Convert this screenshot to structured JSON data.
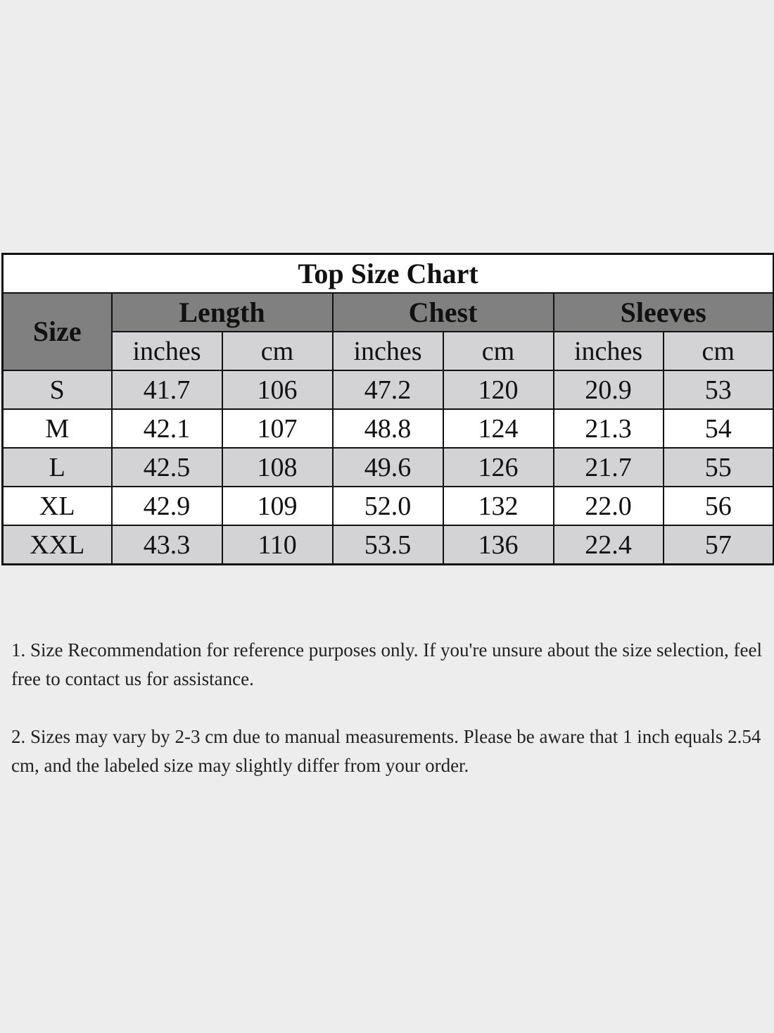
{
  "title": "Top Size Chart",
  "headers": {
    "size": "Size",
    "groups": [
      "Length",
      "Chest",
      "Sleeves"
    ],
    "units": [
      "inches",
      "cm",
      "inches",
      "cm",
      "inches",
      "cm"
    ]
  },
  "rows": [
    {
      "size": "S",
      "values": [
        "41.7",
        "106",
        "47.2",
        "120",
        "20.9",
        "53"
      ]
    },
    {
      "size": "M",
      "values": [
        "42.1",
        "107",
        "48.8",
        "124",
        "21.3",
        "54"
      ]
    },
    {
      "size": "L",
      "values": [
        "42.5",
        "108",
        "49.6",
        "126",
        "21.7",
        "55"
      ]
    },
    {
      "size": "XL",
      "values": [
        "42.9",
        "109",
        "52.0",
        "132",
        "22.0",
        "56"
      ]
    },
    {
      "size": "XXL",
      "values": [
        "43.3",
        "110",
        "53.5",
        "136",
        "22.4",
        "57"
      ]
    }
  ],
  "notes": [
    "1. Size Recommendation for reference purposes only. If you're unsure about the size selection, feel free to contact us for assistance.",
    "2. Sizes may vary by 2-3 cm due to manual measurements. Please be aware that 1 inch equals 2.54 cm, and the labeled size may slightly differ from your order."
  ],
  "colors": {
    "background": "#ededed",
    "header_dark": "#808080",
    "row_light": "#d3d2d4",
    "row_white": "#ffffff"
  }
}
